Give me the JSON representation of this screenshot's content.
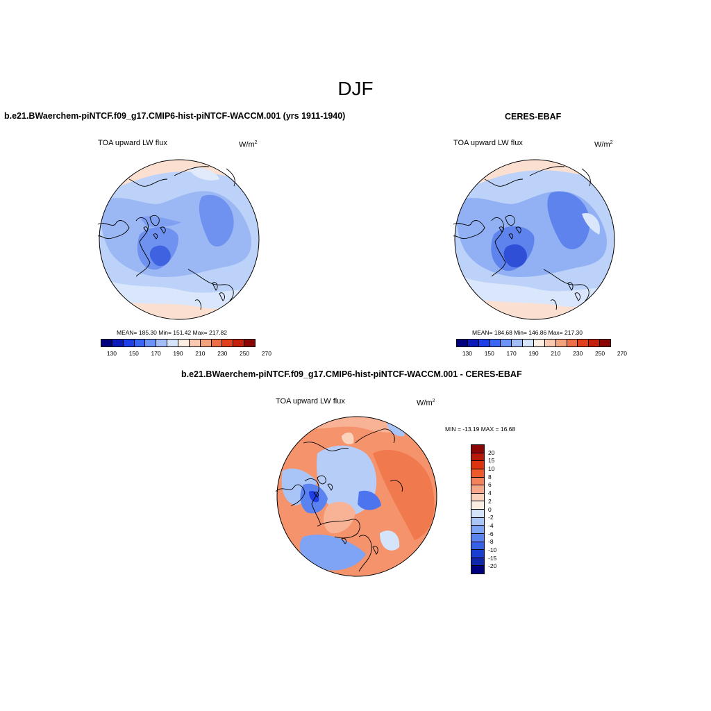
{
  "figure": {
    "title": "DJF"
  },
  "panels": {
    "model": {
      "title": "b.e21.BWaerchem-piNTCF.f09_g17.CMIP6-hist-piNTCF-WACCM.001 (yrs 1911-1940)",
      "variable": "TOA upward LW flux",
      "units_base": "W/m",
      "units_exp": "2",
      "stats": "MEAN= 185.30  Min= 151.42  Max= 217.82",
      "mean": 185.3,
      "min": 151.42,
      "max": 217.82
    },
    "obs": {
      "title": "CERES-EBAF",
      "variable": "TOA upward LW flux",
      "units_base": "W/m",
      "units_exp": "2",
      "stats": "MEAN= 184.68  Min= 146.86  Max= 217.30",
      "mean": 184.68,
      "min": 146.86,
      "max": 217.3
    },
    "diff": {
      "title": "b.e21.BWaerchem-piNTCF.f09_g17.CMIP6-hist-piNTCF-WACCM.001 - CERES-EBAF",
      "variable": "TOA upward LW flux",
      "units_base": "W/m",
      "units_exp": "2",
      "stats": "MIN = -13.19 MAX =  16.68",
      "min": -13.19,
      "max": 16.68
    }
  },
  "colorbar_abs": {
    "colors": [
      "#00007f",
      "#0b1ab8",
      "#1f3ee6",
      "#3b66f5",
      "#6e93f8",
      "#a3bdf8",
      "#d4e4fa",
      "#fdeee4",
      "#f9c9b0",
      "#f5a27e",
      "#ef6d47",
      "#e2401c",
      "#c4200b",
      "#8b0505"
    ],
    "labels": [
      "130",
      "150",
      "170",
      "190",
      "210",
      "230",
      "250",
      "270"
    ]
  },
  "colorbar_diff": {
    "colors": [
      "#8b0505",
      "#b81a0a",
      "#dd3310",
      "#ef5a2a",
      "#f4825a",
      "#f8a888",
      "#fbd3bd",
      "#fdeee4",
      "#d4e4fa",
      "#a9c4f7",
      "#7fa3f5",
      "#5a82f0",
      "#3561e8",
      "#1a3fd0",
      "#0f27aa",
      "#00007f"
    ],
    "labels": [
      "20",
      "15",
      "10",
      "8",
      "6",
      "4",
      "2",
      "0",
      "-2",
      "-4",
      "-6",
      "-8",
      "-10",
      "-15",
      "-20"
    ]
  }
}
